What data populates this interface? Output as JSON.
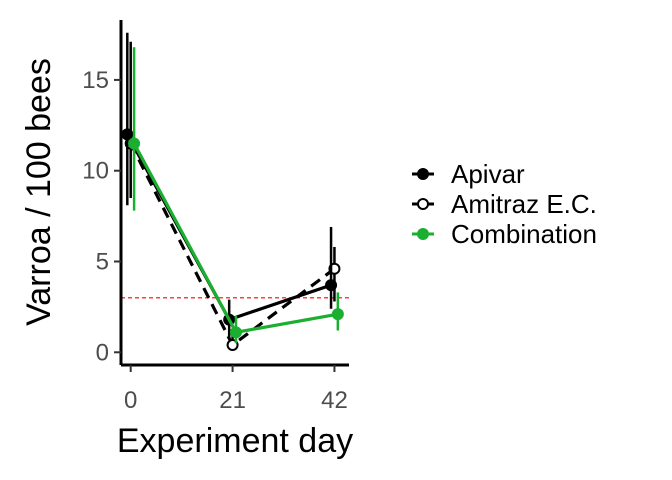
{
  "chart_data": {
    "type": "line",
    "xlabel": "Experiment day",
    "ylabel": "Varroa / 100 bees",
    "x_ticks": [
      0,
      21,
      42
    ],
    "x_tick_labels": [
      "0",
      "21",
      "42"
    ],
    "y_ticks": [
      0,
      5,
      10,
      15
    ],
    "y_tick_labels": [
      "0",
      "5",
      "10",
      "15"
    ],
    "xlim": [
      -2,
      45
    ],
    "ylim": [
      -0.7,
      18.3
    ],
    "grid": false,
    "legend_position": "right",
    "threshold": {
      "y": 3,
      "color": "#ff0000",
      "style": "dashed"
    },
    "series": [
      {
        "name": "Apivar",
        "color": "#000000",
        "marker": "filled",
        "linestyle": "solid",
        "x": [
          0,
          21,
          42
        ],
        "y": [
          12.0,
          1.8,
          3.7
        ],
        "err_low": [
          8.1,
          0.8,
          2.4
        ],
        "err_high": [
          17.6,
          2.9,
          6.9
        ],
        "dodge": -0.7
      },
      {
        "name": "Amitraz E.C.",
        "color": "#000000",
        "marker": "open",
        "linestyle": "dashed",
        "x": [
          0,
          21,
          42
        ],
        "y": [
          11.5,
          0.4,
          4.6
        ],
        "err_low": [
          8.5,
          0.1,
          2.8
        ],
        "err_high": [
          17.1,
          1.0,
          5.8
        ],
        "dodge": 0
      },
      {
        "name": "Combination",
        "color": "#1aaf2e",
        "marker": "filled",
        "linestyle": "solid",
        "x": [
          0,
          21,
          42
        ],
        "y": [
          11.5,
          1.1,
          2.1
        ],
        "err_low": [
          7.8,
          0.5,
          1.2
        ],
        "err_high": [
          16.8,
          2.0,
          3.3
        ],
        "dodge": 0.7
      }
    ]
  }
}
